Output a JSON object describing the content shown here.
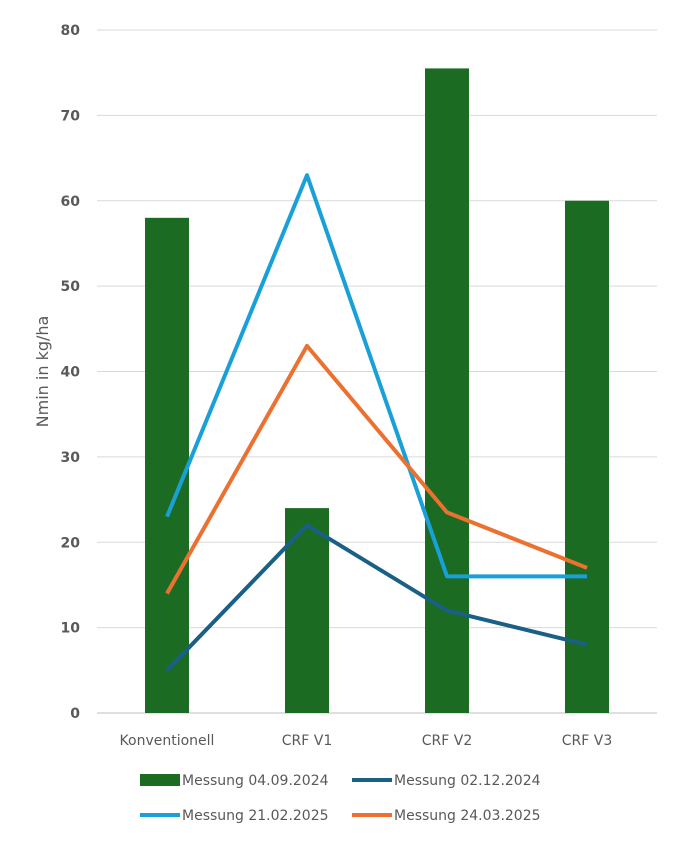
{
  "chart_data": {
    "type": "bar+line",
    "ylabel": "Nmin in kg/ha",
    "ylim": [
      0,
      80
    ],
    "yticks": [
      0,
      10,
      20,
      30,
      40,
      50,
      60,
      70,
      80
    ],
    "grid": true,
    "legend_position": "bottom",
    "categories": [
      "Konventionell",
      "CRF V1",
      "CRF V2",
      "CRF V3"
    ],
    "series": [
      {
        "name": "Messung 04.09.2024",
        "kind": "bar",
        "color": "#1b6b23",
        "values": [
          58,
          24,
          75.5,
          60
        ]
      },
      {
        "name": "Messung 02.12.2024",
        "kind": "line",
        "color": "#1a5f85",
        "values": [
          5,
          22,
          12,
          8
        ]
      },
      {
        "name": "Messung 21.02.2025",
        "kind": "line",
        "color": "#1aa0d8",
        "values": [
          23,
          63,
          16,
          16
        ]
      },
      {
        "name": "Messung 24.03.2025",
        "kind": "line",
        "color": "#ec7131",
        "values": [
          14,
          43,
          23.5,
          17
        ]
      }
    ]
  }
}
